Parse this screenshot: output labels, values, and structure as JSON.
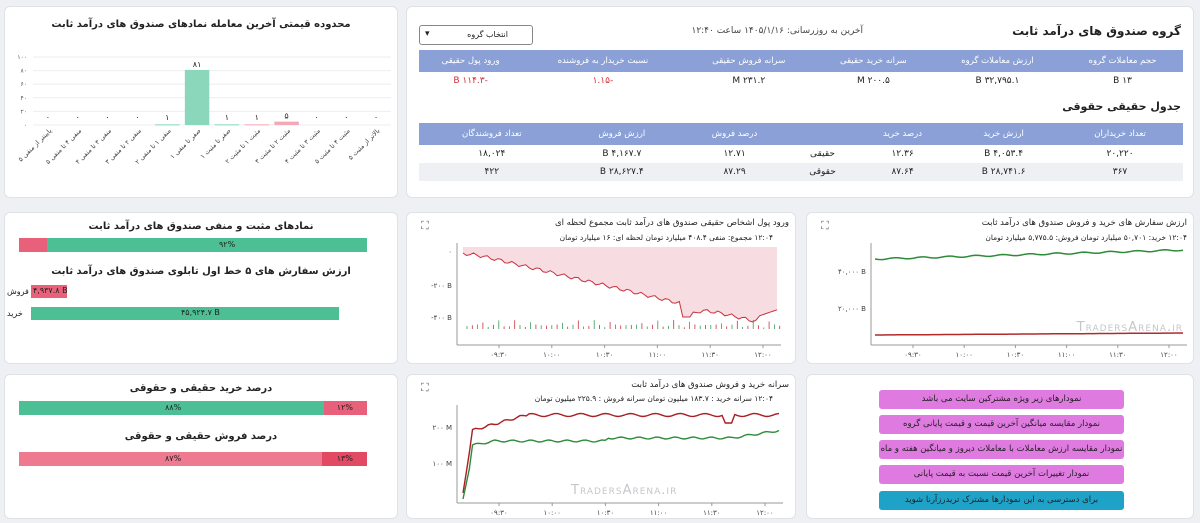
{
  "fund": {
    "title": "گروه صندوق های درآمد ثابت",
    "updated": "آخرین به روزرسانی: ۱۴۰۵/۱/۱۶ ساعت ۱۲:۴۰",
    "select_label": "انتخاب گروه",
    "headers": [
      "حجم معاملات گروه",
      "ارزش معاملات گروه",
      "سرانه خرید حقیقی",
      "سرانه فروش حقیقی",
      "نسبت خریدار به فروشنده",
      "ورود پول حقیقی"
    ],
    "values": [
      "۱۳ B",
      "۳۲,۷۹۵.۱ B",
      "۲۰۰.۵ M",
      "۲۳۱.۲ M",
      "-۱.۱۵",
      "-۱۱۴.۳ B"
    ]
  },
  "haghighi": {
    "title": "جدول حقیقی حقوقی",
    "headers": [
      "تعداد خریداران",
      "ارزش خرید",
      "درصد خرید",
      "",
      "درصد فروش",
      "ارزش فروش",
      "تعداد فروشندگان"
    ],
    "rows": [
      [
        "۲۰,۲۲۰",
        "۴,۰۵۳.۴ B",
        "۱۲.۳۶",
        "حقیقی",
        "۱۲.۷۱",
        "۴,۱۶۷.۷ B",
        "۱۸,۰۲۴"
      ],
      [
        "۳۶۷",
        "۲۸,۷۴۱.۶ B",
        "۸۷.۶۴",
        "حقوقی",
        "۸۷.۲۹",
        "۲۸,۶۲۷.۴ B",
        "۴۲۲"
      ]
    ]
  },
  "range_chart": {
    "title": "محدوده قیمتی آخرین معامله نمادهای صندوق های درآمد ثابت",
    "chart_data": {
      "type": "bar",
      "categories": [
        "بالاتر از مثبت ۵",
        "مثبت ۴ تا مثبت ۵",
        "مثبت ۳ تا مثبت ۴",
        "مثبت ۲ تا مثبت ۳",
        "مثبت ۱ تا مثبت ۲",
        "صفر تا مثبت ۱",
        "صفر تا منفی ۱",
        "منفی ۱ تا منفی ۲",
        "منفی ۲ تا منفی ۳",
        "منفی ۳ تا منفی ۴",
        "منفی ۴ تا منفی ۵",
        "پایینتر از منفی ۵"
      ],
      "values": [
        0,
        0,
        0,
        0,
        1,
        81,
        1,
        1,
        5,
        0,
        0,
        0
      ],
      "ylim": [
        0,
        100
      ],
      "yticks": [
        "۰",
        "۲۰",
        "۴۰",
        "۶۰",
        "۸۰",
        "۱۰۰"
      ],
      "labels": [
        "۰",
        "۰",
        "۰",
        "۰",
        "۱",
        "۸۱",
        "۱",
        "۱",
        "۵",
        "۰",
        "۰",
        "۰"
      ]
    }
  },
  "posneg": {
    "title": "نمادهای مثبت و منفی صندوق های درآمد ثابت",
    "positive_pct": 92,
    "positive_label": "۹۲%"
  },
  "orders": {
    "title": "ارزش سفارش های ۵ خط اول تابلوی صندوق های درآمد ثابت",
    "sell_label": "فروش",
    "buy_label": "خرید",
    "sell_value": "۴,۹۳۷.۸ B",
    "buy_value": "۴۵,۹۲۴.۷ B"
  },
  "pct": {
    "buy_title": "درصد خرید حقیقی و حقوقی",
    "sell_title": "درصد فروش حقیقی و حقوقی",
    "buy_hoghooghi": "۸۸%",
    "buy_haghighi": "۱۲%",
    "sell_hoghooghi": "۸۷%",
    "sell_haghighi": "۱۳%"
  },
  "money_chart": {
    "title": "ورود پول اشخاص حقیقی صندوق های درآمد ثابت   مجموع   لحظه ای",
    "subtitle": "۱۲:۰۴ مجموع: منفی ۴۰۸.۴ میلیارد تومان لحظه ای: ۱۶ میلیارد تومان",
    "yticks": [
      "۰",
      "-۲۰۰ B",
      "-۴۰۰ B"
    ],
    "xticks": [
      "۰۹:۳۰",
      "۱۰:۰۰",
      "۱۰:۳۰",
      "۱۱:۰۰",
      "۱۱:۳۰",
      "۱۲:۰۰"
    ]
  },
  "orders_chart": {
    "title": "ارزش سفارش های خرید و فروش صندوق های درآمد ثابت",
    "subtitle": "۱۲:۰۴ خرید: ۵۰,۷۰۱ میلیارد تومان فروش: ۵,۷۷۵.۵ میلیارد تومان",
    "yticks": [
      "۴۰,۰۰۰ B",
      "۲۰,۰۰۰ B"
    ],
    "xticks": [
      "۰۹:۳۰",
      "۱۰:۰۰",
      "۱۰:۳۰",
      "۱۱:۰۰",
      "۱۱:۳۰",
      "۱۲:۰۰"
    ],
    "watermark": "TradersArena.ir"
  },
  "per_capita_chart": {
    "title": "سرانه خرید و فروش صندوق های درآمد ثابت",
    "subtitle": "۱۲:۰۴ سرانه خرید : ۱۸۳.۷ میلیون تومان سرانه فروش : ۲۲۵.۹ میلیون تومان",
    "yticks": [
      "۲۰۰ M",
      "۱۰۰ M"
    ],
    "xticks": [
      "۰۹:۳۰",
      "۱۰:۰۰",
      "۱۰:۳۰",
      "۱۱:۰۰",
      "۱۱:۳۰",
      "۱۲:۰۰"
    ],
    "watermark": "TradersArena.ir"
  },
  "menu": {
    "items": [
      "نمودارهای زیر ویژه مشترکین سایت می باشد",
      "نمودار مقایسه میانگین آخرین قیمت و قیمت پایانی گروه",
      "نمودار مقایسه ارزش معاملات با معاملات دیروز و میانگین هفته و ماه",
      "نمودار تغییرات آخرین قیمت نسبت به قیمت پایانی",
      "برای دسترسی به این نمودارها مشترک تریدرزآرنا شوید"
    ]
  },
  "colors": {
    "green": "#4cbf94",
    "red": "#e8607a",
    "violet": "#df7ae0",
    "cyan": "#1fa2c8",
    "header": "#8aa0d6"
  }
}
